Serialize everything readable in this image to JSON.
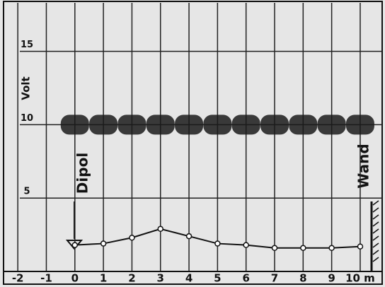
{
  "chart_data": {
    "type": "line",
    "x": [
      0,
      1,
      2,
      3,
      4,
      5,
      6,
      7,
      8,
      9,
      10
    ],
    "series": [
      {
        "color": "#111111",
        "values": [
          1.8,
          1.9,
          2.3,
          2.9,
          2.4,
          1.9,
          1.8,
          1.6,
          1.6,
          1.6,
          1.7
        ]
      },
      {
        "color": "#1a1a1a",
        "values": [
          10,
          10,
          10,
          10,
          10,
          10,
          10,
          10,
          10,
          10,
          10
        ]
      }
    ],
    "ylabel": "Volt",
    "annotations": [
      "Dipol",
      "Wand"
    ],
    "xlim": [
      -2.5,
      10.77
    ],
    "ylim": [
      0,
      18.5
    ],
    "xticks": [
      -2,
      -1,
      0,
      1,
      2,
      3,
      4,
      5,
      6,
      7,
      8,
      9,
      {
        "value": 10,
        "label": "10 m"
      }
    ],
    "yticks": [
      5,
      10,
      15
    ],
    "grid": true
  }
}
